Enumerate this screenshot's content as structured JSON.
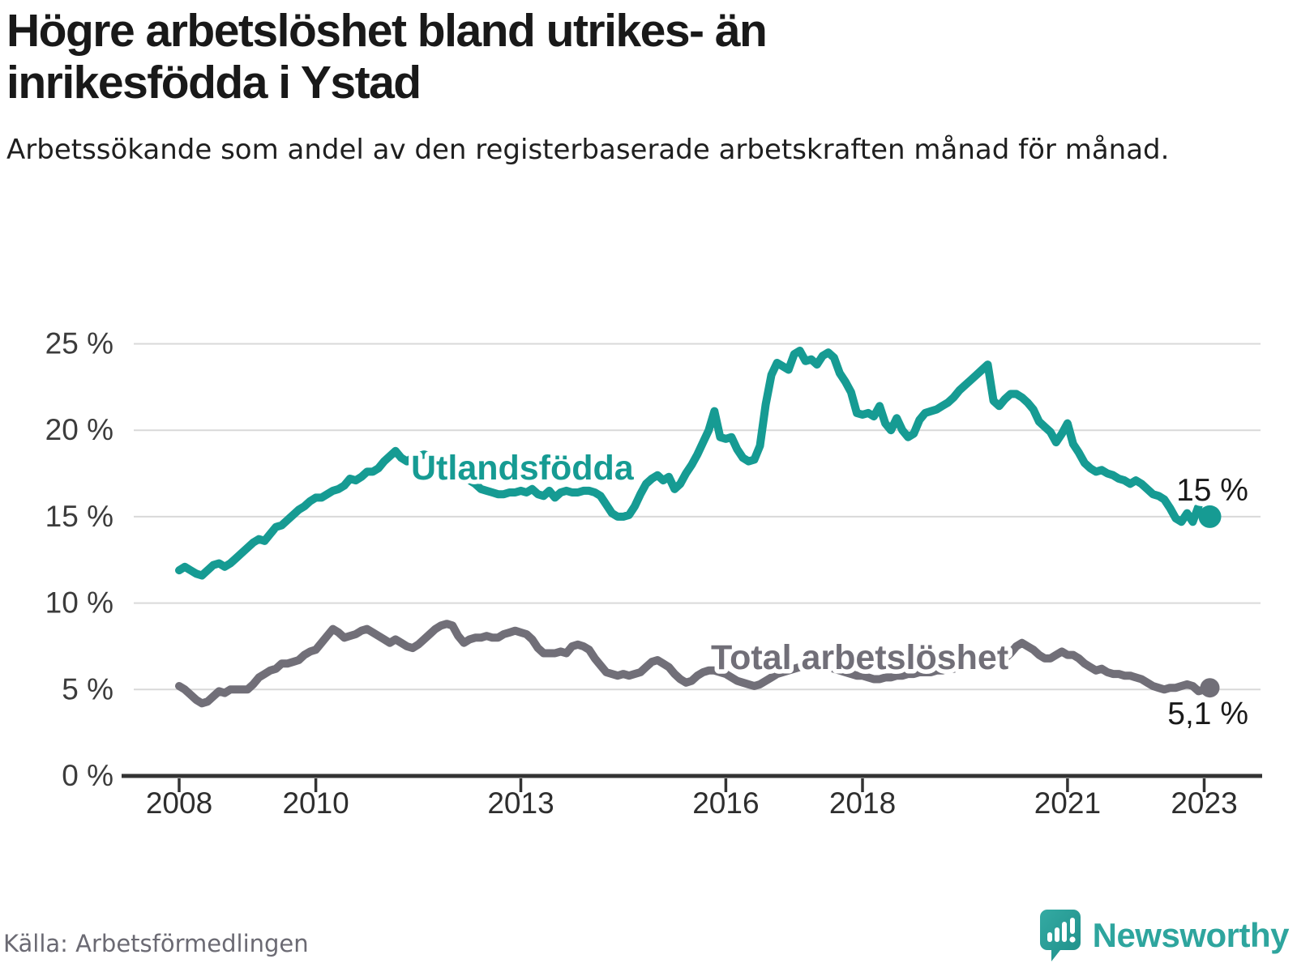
{
  "header": {
    "title": "Högre arbetslöshet bland utrikes- än inrikesfödda i Ystad",
    "subtitle": "Arbetssökande som andel av den registerbaserade arbetskraften månad för månad."
  },
  "footer": {
    "source": "Källa: Arbetsförmedlingen",
    "brand": "Newsworthy"
  },
  "colors": {
    "foreign_born": "#169b93",
    "total": "#716f78",
    "axis": "#333333",
    "grid": "#d9d9d9",
    "label_text": "#1a1a1a",
    "tick_text": "#2e2e2e",
    "muted": "#6b6a73",
    "brand_teal": "#2ea59e"
  },
  "chart_data": {
    "type": "line",
    "title": "Högre arbetslöshet bland utrikes- än inrikesfödda i Ystad",
    "subtitle": "Arbetssökande som andel av den registerbaserade arbetskraften månad för månad.",
    "source": "Källa: Arbetsförmedlingen",
    "x_start": "2008-01",
    "x_end": "2023-02",
    "x_interval": "monthly",
    "x_tick_years": [
      2008,
      2010,
      2013,
      2016,
      2018,
      2021,
      2023
    ],
    "y_tick_labels": [
      "0 %",
      "5 %",
      "10 %",
      "15 %",
      "20 %",
      "25 %"
    ],
    "ylim": [
      0,
      25
    ],
    "grid": "horizontal",
    "legend_position": "inline-labels",
    "series": [
      {
        "name": "Utlandsfödda",
        "color": "#169b93",
        "end_label": "15 %",
        "end_value": 15.0,
        "values": [
          11.9,
          12.1,
          11.9,
          11.7,
          11.6,
          11.9,
          12.2,
          12.3,
          12.1,
          12.3,
          12.6,
          12.9,
          13.2,
          13.5,
          13.7,
          13.6,
          14.0,
          14.4,
          14.5,
          14.8,
          15.1,
          15.4,
          15.6,
          15.9,
          16.1,
          16.1,
          16.3,
          16.5,
          16.6,
          16.8,
          17.2,
          17.1,
          17.3,
          17.6,
          17.6,
          17.8,
          18.2,
          18.5,
          18.8,
          18.4,
          18.2,
          18.4,
          18.5,
          18.6,
          18.5,
          18.3,
          18.2,
          18.0,
          17.8,
          17.6,
          17.3,
          17.1,
          16.9,
          16.6,
          16.5,
          16.4,
          16.3,
          16.3,
          16.4,
          16.4,
          16.5,
          16.4,
          16.6,
          16.3,
          16.2,
          16.5,
          16.1,
          16.4,
          16.5,
          16.4,
          16.4,
          16.5,
          16.5,
          16.4,
          16.2,
          15.7,
          15.2,
          15.0,
          15.0,
          15.1,
          15.6,
          16.3,
          16.9,
          17.2,
          17.4,
          17.1,
          17.3,
          16.6,
          16.9,
          17.5,
          18.0,
          18.6,
          19.3,
          20.0,
          21.1,
          19.6,
          19.5,
          19.6,
          18.9,
          18.4,
          18.2,
          18.3,
          19.1,
          21.5,
          23.2,
          23.9,
          23.7,
          23.5,
          24.4,
          24.6,
          24.0,
          24.1,
          23.8,
          24.3,
          24.5,
          24.2,
          23.3,
          22.8,
          22.2,
          21.0,
          20.9,
          21.0,
          20.8,
          21.4,
          20.4,
          20.0,
          20.7,
          20.0,
          19.6,
          19.8,
          20.6,
          21.0,
          21.1,
          21.2,
          21.4,
          21.6,
          21.9,
          22.3,
          22.6,
          22.9,
          23.2,
          23.5,
          23.8,
          21.7,
          21.4,
          21.8,
          22.1,
          22.1,
          21.9,
          21.6,
          21.2,
          20.5,
          20.2,
          19.9,
          19.3,
          19.8,
          20.4,
          19.2,
          18.7,
          18.1,
          17.8,
          17.6,
          17.7,
          17.5,
          17.4,
          17.2,
          17.1,
          16.9,
          17.1,
          16.9,
          16.6,
          16.3,
          16.2,
          16.0,
          15.5,
          14.9,
          14.7,
          15.2,
          14.7,
          15.6,
          15.4,
          15.0
        ]
      },
      {
        "name": "Total arbetslöshet",
        "color": "#716f78",
        "end_label": "5,1 %",
        "end_value": 5.1,
        "values": [
          5.2,
          5.0,
          4.7,
          4.4,
          4.2,
          4.3,
          4.6,
          4.9,
          4.8,
          5.0,
          5.0,
          5.0,
          5.0,
          5.3,
          5.7,
          5.9,
          6.1,
          6.2,
          6.5,
          6.5,
          6.6,
          6.7,
          7.0,
          7.2,
          7.3,
          7.7,
          8.1,
          8.5,
          8.3,
          8.0,
          8.1,
          8.2,
          8.4,
          8.5,
          8.3,
          8.1,
          7.9,
          7.7,
          7.9,
          7.7,
          7.5,
          7.4,
          7.6,
          7.9,
          8.2,
          8.5,
          8.7,
          8.8,
          8.7,
          8.1,
          7.7,
          7.9,
          8.0,
          8.0,
          8.1,
          8.0,
          8.0,
          8.2,
          8.3,
          8.4,
          8.3,
          8.2,
          7.9,
          7.4,
          7.1,
          7.1,
          7.1,
          7.2,
          7.1,
          7.5,
          7.6,
          7.5,
          7.3,
          6.8,
          6.4,
          6.0,
          5.9,
          5.8,
          5.9,
          5.8,
          5.9,
          6.0,
          6.3,
          6.6,
          6.7,
          6.5,
          6.3,
          5.9,
          5.6,
          5.4,
          5.5,
          5.8,
          6.0,
          6.1,
          6.1,
          6.0,
          5.9,
          5.7,
          5.5,
          5.4,
          5.3,
          5.2,
          5.3,
          5.5,
          5.7,
          5.9,
          6.0,
          6.1,
          6.2,
          6.3,
          6.4,
          6.4,
          6.3,
          6.4,
          6.3,
          6.2,
          6.1,
          6.0,
          5.9,
          5.8,
          5.8,
          5.7,
          5.6,
          5.6,
          5.7,
          5.7,
          5.8,
          5.8,
          5.9,
          5.9,
          6.0,
          6.0,
          6.0,
          6.1,
          6.1,
          6.2,
          6.2,
          6.3,
          6.3,
          6.4,
          6.4,
          6.5,
          6.5,
          6.6,
          6.6,
          6.8,
          7.1,
          7.5,
          7.7,
          7.5,
          7.3,
          7.0,
          6.8,
          6.8,
          7.0,
          7.2,
          7.0,
          7.0,
          6.8,
          6.5,
          6.3,
          6.1,
          6.2,
          6.0,
          5.9,
          5.9,
          5.8,
          5.8,
          5.7,
          5.6,
          5.4,
          5.2,
          5.1,
          5.0,
          5.1,
          5.1,
          5.2,
          5.3,
          5.2,
          4.9,
          5.0,
          5.1
        ]
      }
    ]
  }
}
